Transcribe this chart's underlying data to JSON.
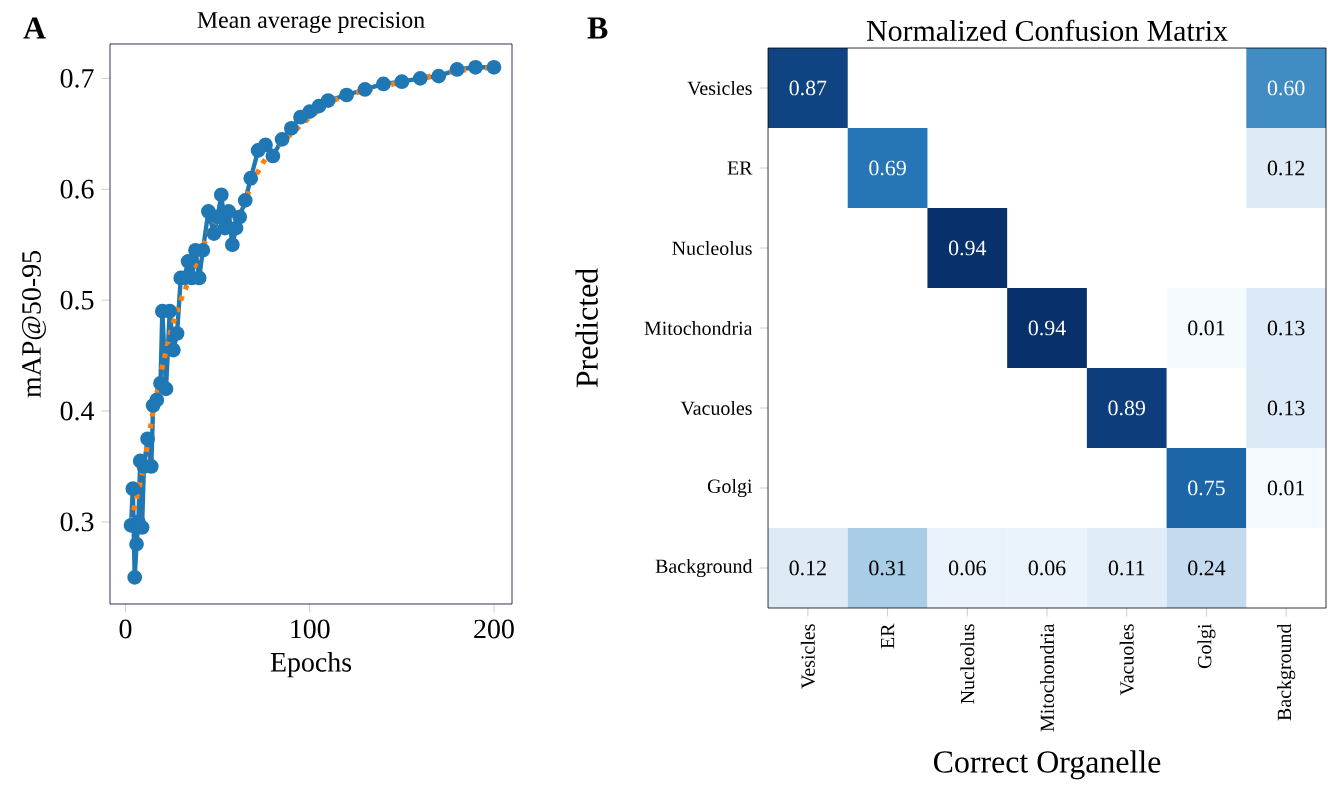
{
  "chart_data": [
    {
      "type": "line",
      "title": "Mean average precision",
      "xlabel": "Epochs",
      "ylabel": "mAP@50-95",
      "annotations": [
        "A"
      ],
      "xlim": [
        -8.4,
        209.8
      ],
      "ylim": [
        0.226,
        0.731
      ],
      "xticks": [
        0,
        100,
        200
      ],
      "yticks": [
        0.3,
        0.4,
        0.5,
        0.6,
        0.7
      ],
      "series": [
        {
          "color": "#1f77b4",
          "marker": "circle",
          "line_style": "solid",
          "x": [
            3,
            4,
            5,
            6,
            7,
            8,
            9,
            10,
            12,
            14,
            15,
            17,
            19,
            20,
            22,
            24,
            26,
            28,
            30,
            32,
            34,
            36,
            38,
            40,
            42,
            45,
            48,
            50,
            52,
            54,
            56,
            58,
            60,
            62,
            65,
            68,
            72,
            76,
            80,
            85,
            90,
            95,
            100,
            105,
            110,
            120,
            130,
            140,
            150,
            160,
            170,
            180,
            190,
            200
          ],
          "values": [
            0.297,
            0.33,
            0.25,
            0.28,
            0.3,
            0.355,
            0.295,
            0.35,
            0.375,
            0.35,
            0.405,
            0.41,
            0.425,
            0.49,
            0.42,
            0.49,
            0.455,
            0.47,
            0.52,
            0.52,
            0.535,
            0.52,
            0.545,
            0.52,
            0.545,
            0.58,
            0.56,
            0.575,
            0.595,
            0.565,
            0.58,
            0.55,
            0.565,
            0.575,
            0.59,
            0.61,
            0.635,
            0.64,
            0.63,
            0.645,
            0.655,
            0.665,
            0.67,
            0.675,
            0.68,
            0.685,
            0.69,
            0.695,
            0.697,
            0.7,
            0.702,
            0.708,
            0.71,
            0.71
          ]
        },
        {
          "color": "#ff7f0e",
          "marker": "none",
          "line_style": "dotted",
          "x": [
            3,
            10,
            15,
            20,
            25,
            30,
            35,
            40,
            45,
            50,
            55,
            60,
            65,
            70,
            75,
            80,
            90,
            100,
            110,
            120,
            140,
            160,
            180,
            200
          ],
          "values": [
            0.3,
            0.35,
            0.4,
            0.44,
            0.475,
            0.5,
            0.52,
            0.54,
            0.56,
            0.575,
            0.578,
            0.578,
            0.59,
            0.61,
            0.625,
            0.635,
            0.65,
            0.665,
            0.678,
            0.685,
            0.693,
            0.7,
            0.707,
            0.71
          ]
        }
      ]
    },
    {
      "type": "heatmap",
      "title": "Normalized Confusion Matrix",
      "xlabel": "Correct Organelle",
      "ylabel": "Predicted",
      "annotations": [
        "B"
      ],
      "categories": [
        "Vesicles",
        "ER",
        "Nucleolus",
        "Mitochondria",
        "Vacuoles",
        "Golgi",
        "Background"
      ],
      "y_categories": [
        "Vesicles",
        "ER",
        "Nucleolus",
        "Mitochondria",
        "Vacuoles",
        "Golgi",
        "Background"
      ],
      "cells": [
        [
          0.87,
          null,
          null,
          null,
          null,
          null,
          0.6
        ],
        [
          null,
          0.69,
          null,
          null,
          null,
          null,
          0.12
        ],
        [
          null,
          null,
          0.94,
          null,
          null,
          null,
          null
        ],
        [
          null,
          null,
          null,
          0.94,
          null,
          0.01,
          0.13
        ],
        [
          null,
          null,
          null,
          null,
          0.89,
          null,
          0.13
        ],
        [
          null,
          null,
          null,
          null,
          null,
          0.75,
          0.01
        ],
        [
          0.12,
          0.31,
          0.06,
          0.06,
          0.11,
          0.24,
          null
        ]
      ],
      "cell_labels": [
        [
          "0.87",
          null,
          null,
          null,
          null,
          null,
          "0.60"
        ],
        [
          null,
          "0.69",
          null,
          null,
          null,
          null,
          "0.12"
        ],
        [
          null,
          null,
          "0.94",
          null,
          null,
          null,
          null
        ],
        [
          null,
          null,
          null,
          "0.94",
          null,
          "0.01",
          "0.13"
        ],
        [
          null,
          null,
          null,
          null,
          "0.89",
          null,
          "0.13"
        ],
        [
          null,
          null,
          null,
          null,
          null,
          "0.75",
          "0.01"
        ],
        [
          "0.12",
          "0.31",
          "0.06",
          "0.06",
          "0.11",
          "0.24",
          null
        ]
      ]
    }
  ]
}
